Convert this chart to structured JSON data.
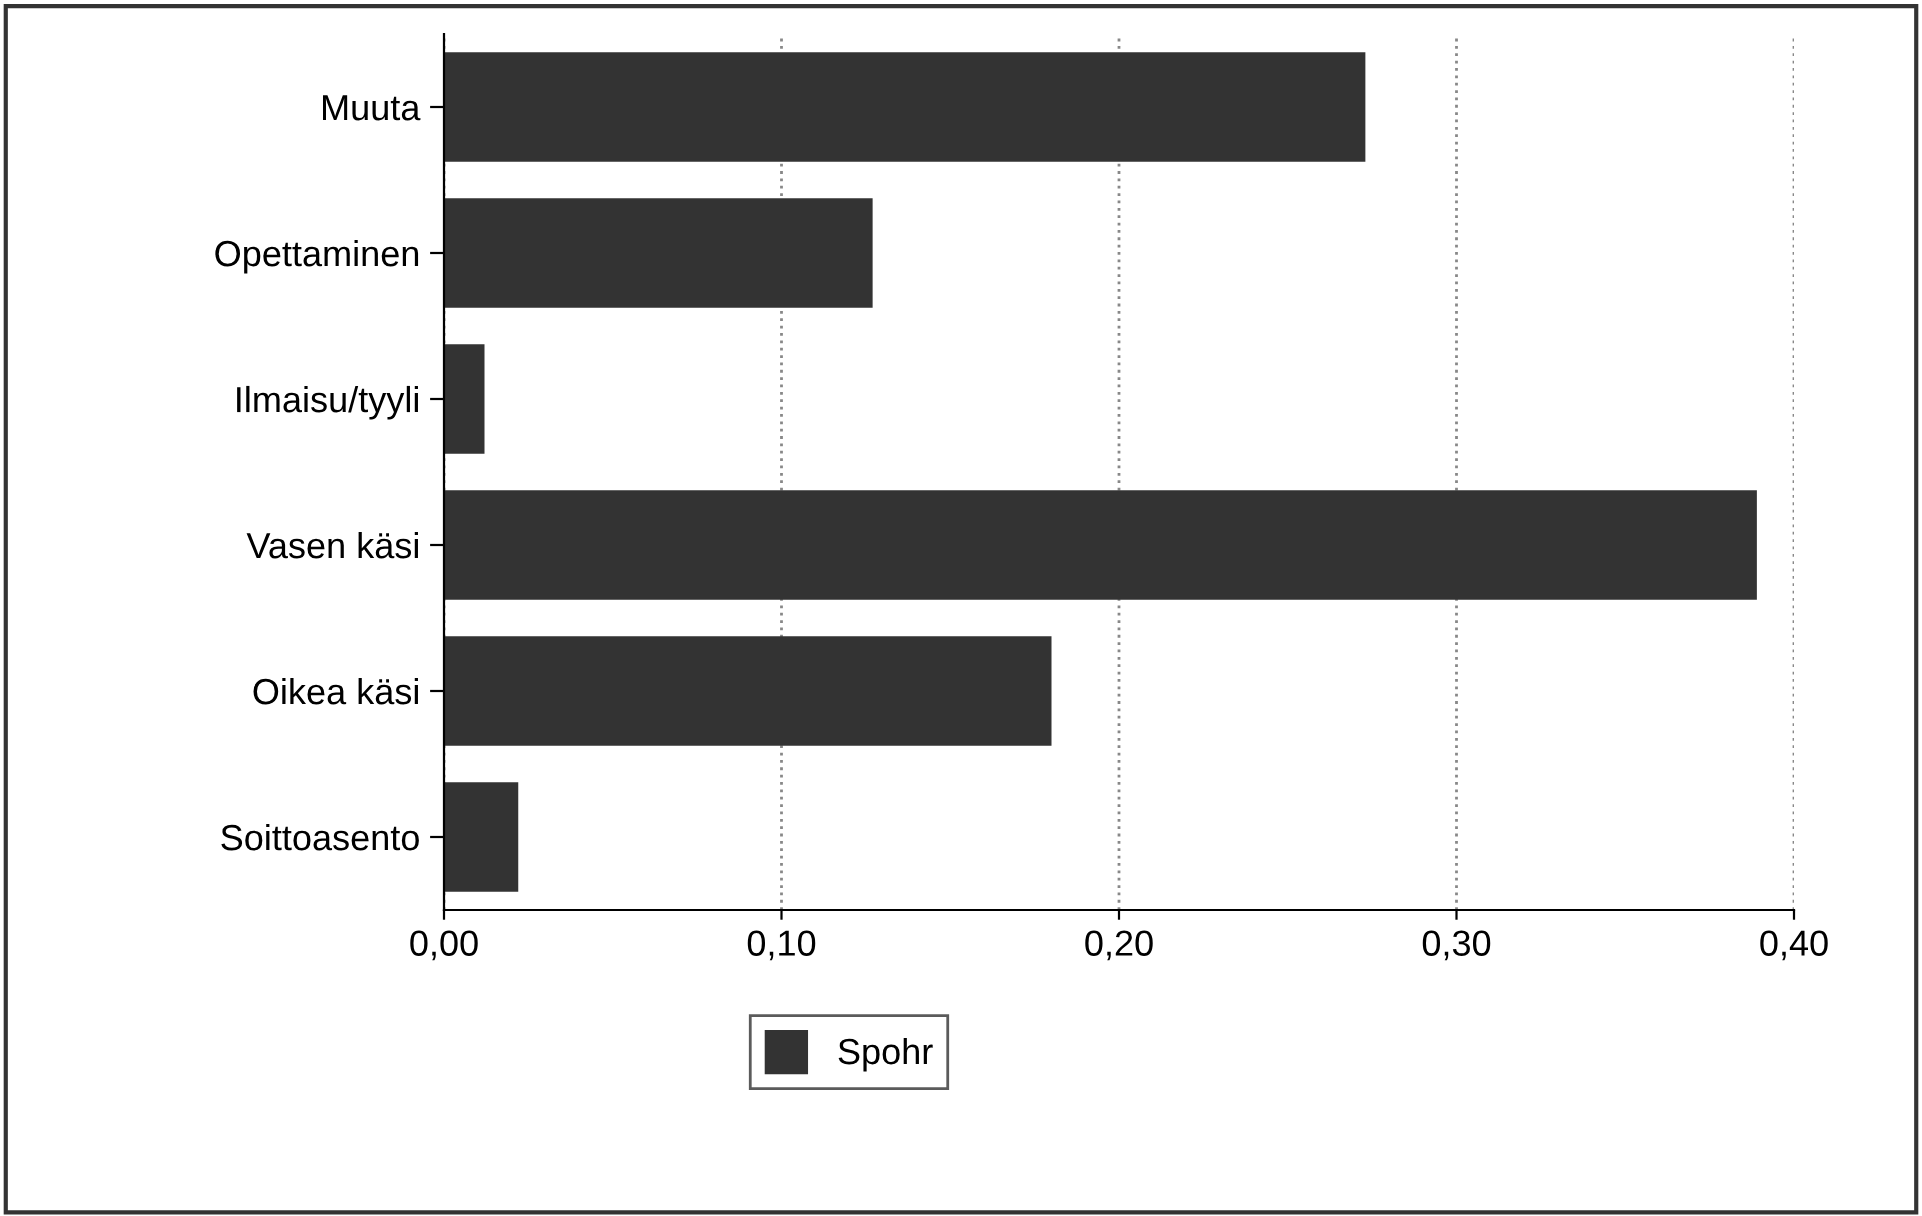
{
  "chart_data": {
    "type": "bar",
    "orientation": "horizontal",
    "categories": [
      "Muuta",
      "Opettaminen",
      "Ilmaisu/tyyli",
      "Vasen käsi",
      "Oikea käsi",
      "Soittoasento"
    ],
    "series": [
      {
        "name": "Spohr",
        "color": "#333333",
        "values": [
          0.273,
          0.127,
          0.012,
          0.389,
          0.18,
          0.022
        ]
      }
    ],
    "xlim": [
      0,
      0.4
    ],
    "xticks": [
      {
        "value": 0,
        "label": "0,00"
      },
      {
        "value": 0.1,
        "label": "0,10"
      },
      {
        "value": 0.2,
        "label": "0,20"
      },
      {
        "value": 0.3,
        "label": "0,30"
      },
      {
        "value": 0.4,
        "label": "0,40"
      }
    ],
    "grid": "x",
    "legend": "bottom"
  }
}
